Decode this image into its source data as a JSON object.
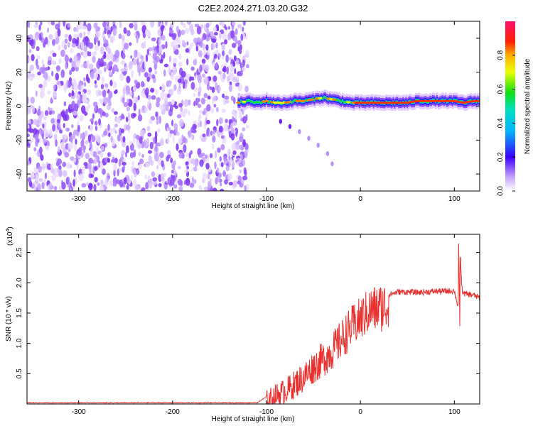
{
  "title": "C2E2.2024.271.03.20.G32",
  "chart_data": [
    {
      "type": "heatmap",
      "xlabel": "Height of straight line (km)",
      "ylabel": "Frequency (Hz)",
      "xlim": [
        -355,
        127
      ],
      "ylim": [
        -50,
        50
      ],
      "xticks": [
        -300,
        -200,
        -100,
        0,
        100
      ],
      "xtick_labels": [
        "-300",
        "-200",
        "-100",
        "0",
        "100"
      ],
      "yticks": [
        -40,
        -20,
        0,
        20,
        40
      ],
      "ytick_labels": [
        "-40",
        "-20",
        "0",
        "20",
        "40"
      ],
      "colorbar": {
        "label": "Normalized spectral amplitude",
        "range": [
          0,
          1
        ],
        "ticks": [
          0.0,
          0.2,
          0.4,
          0.6,
          0.8
        ],
        "tick_labels": [
          "0.0",
          "0.2",
          "0.4",
          "0.6",
          "0.8"
        ]
      },
      "noise_region_x": [
        -355,
        -120
      ],
      "signal_trace": {
        "x": [
          -130,
          -120,
          -110,
          -100,
          -90,
          -80,
          -70,
          -60,
          -50,
          -40,
          -30,
          -20,
          -10,
          0,
          10,
          20,
          30,
          40,
          50,
          60,
          70,
          80,
          90,
          100,
          110,
          120,
          127
        ],
        "y": [
          2,
          3,
          2,
          3,
          2,
          2,
          3,
          3,
          4,
          5,
          4,
          3,
          2,
          2,
          2,
          2,
          2,
          2,
          2,
          3,
          3,
          3,
          3,
          3,
          2,
          3,
          3
        ]
      },
      "faint_branch": {
        "x": [
          -85,
          -75,
          -65,
          -55,
          -45,
          -35,
          -30
        ],
        "y": [
          -9,
          -12,
          -15,
          -19,
          -23,
          -28,
          -34
        ]
      }
    },
    {
      "type": "line",
      "xlabel": "Height of straight line (km)",
      "ylabel": "SNR (10 * v/v)",
      "y_multiplier": "(x10",
      "y_multiplier_exp": "4",
      "y_multiplier_close": ")",
      "xlim": [
        -355,
        127
      ],
      "ylim": [
        0,
        2.8
      ],
      "xticks": [
        -300,
        -200,
        -100,
        0,
        100
      ],
      "xtick_labels": [
        "-300",
        "-200",
        "-100",
        "0",
        "100"
      ],
      "yticks": [
        0.5,
        1.0,
        1.5,
        2.0,
        2.5
      ],
      "ytick_labels": [
        "0.5",
        "1.0",
        "1.5",
        "2.0",
        "2.5"
      ],
      "series": [
        {
          "color": "#e8302e",
          "x": [
            -355,
            -300,
            -200,
            -110,
            -100,
            -90,
            -80,
            -70,
            -60,
            -50,
            -40,
            -30,
            -20,
            -10,
            0,
            10,
            20,
            30,
            40,
            50,
            60,
            70,
            80,
            90,
            100,
            104,
            106,
            108,
            110,
            120,
            127
          ],
          "y": [
            0.02,
            0.02,
            0.02,
            0.02,
            0.12,
            0.22,
            0.3,
            0.42,
            0.55,
            0.72,
            0.85,
            1.0,
            1.2,
            1.4,
            1.55,
            1.7,
            1.75,
            1.8,
            1.85,
            1.85,
            1.84,
            1.85,
            1.86,
            1.86,
            1.87,
            1.6,
            2.6,
            1.9,
            1.82,
            1.8,
            1.75
          ]
        }
      ]
    }
  ]
}
